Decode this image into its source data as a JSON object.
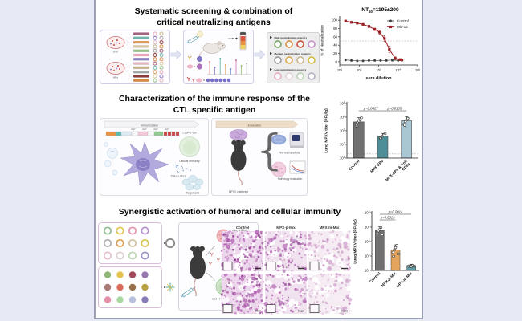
{
  "sections": {
    "s1": {
      "title_line1": "Systematic screening & combination of",
      "title_line2": "critical neutralizing antigens",
      "virus_top_label": "EVs",
      "virus_bottom_label": "MVs",
      "antigen_bars": [
        "#a8607f",
        "#6fb5ad",
        "#e09858",
        "#d9c9a2",
        "#97c487",
        "#e7a8ba",
        "#8a7cc2",
        "#e3b6c6",
        "#c4b488",
        "#a6a6a6",
        "#8c3a3a",
        "#d88a44"
      ],
      "screen_rows": [
        {
          "label": "High neutralization potency",
          "colors": [
            "#7ca86f",
            "#df964f",
            "#c65541",
            "#c794c7"
          ]
        },
        {
          "label": "Medium neutralization potency",
          "colors": [
            "#9b9b9b",
            "#ddab59",
            "#c9b795",
            "#cfc14f"
          ]
        },
        {
          "label": "Low neutralization potency",
          "colors": [
            "#e5b0c4",
            "#e4d4d4",
            "#bdd3b5",
            "#b5b5c7"
          ]
        }
      ]
    },
    "s2": {
      "title_line1": "Characterization of the immune response of the",
      "title_line2": "CTL specific antigen",
      "banner_left": "Immunization",
      "banner_right": "Evaluation",
      "linker": "AAY",
      "label_cd8": "CD8+ T cell",
      "label_cellular": "Cellular immunity",
      "label_cytokines": "TNF-α / IFN-γ",
      "label_target": "Target cells",
      "label_challenge": "MPXV challenge",
      "label_viral": "Viral load analysis",
      "label_pathology": "Pathology evaluation"
    },
    "s3": {
      "title": "Synergistic activation of humoral and cellular immunity",
      "ring_rows": [
        [
          "#8fbc8f",
          "#e2c350",
          "#e295ad",
          "#b493cf"
        ],
        [
          "#adadad",
          "#dd9f50",
          "#cfc0a0",
          "#d5c553"
        ],
        [
          "#e6bfd0",
          "#ddcfcf",
          "#bdd6b4",
          "#9a92c2"
        ]
      ],
      "dot_rows": [
        [
          "#8fb878",
          "#e5c34e",
          "#a04a5a",
          "#9878b0"
        ],
        [
          "#a87a76",
          "#d86a58",
          "#97704a",
          "#b7a040"
        ],
        [
          "#e591a8",
          "#a8d8a0",
          "#b8c0e0",
          "#887ab8"
        ]
      ],
      "label_plasma": "plasma B cell",
      "label_cd8": "CD8+ T cell",
      "label_target": "Target cell death",
      "chip1": "GzmB",
      "chip2": "IFN-γ",
      "histology": {
        "columns": [
          "Control",
          "MPX-p-Mix",
          "MPX-m-Mix"
        ],
        "base_colors": [
          "#edd7ec",
          "#f1e2ef",
          "#f6ecf3"
        ],
        "dot_colors": [
          [
            "#a855a8",
            "#8f3a8f",
            "#c77fc7"
          ],
          [
            "#b468b4",
            "#c98fc4",
            "#9a55a0"
          ],
          [
            "#cf9cca",
            "#dbb3d6",
            "#c08fbc"
          ]
        ],
        "densities": [
          1,
          0.8,
          0.55
        ]
      }
    }
  },
  "chart_data": [
    {
      "type": "line",
      "title_prefix": "NT",
      "title_sub": "50",
      "title_suffix": "=1195±200",
      "xlabel": "sera dilution",
      "ylabel": "% of Neutralization",
      "x_scale": "log",
      "x_ticks": [
        1,
        2,
        3,
        4,
        5
      ],
      "y_ticks": [
        0,
        20,
        40,
        60,
        80,
        100
      ],
      "ylim": [
        -8,
        110
      ],
      "dashed_y": 50,
      "legend_position": "top-right",
      "series": [
        {
          "name": "Control",
          "color": "#3f3f3f",
          "marker": "circle",
          "x_log": [
            1.3,
            1.6,
            1.9,
            2.2,
            2.5,
            2.8,
            3.1,
            3.4,
            3.7,
            4.0,
            4.2
          ],
          "y": [
            4,
            3,
            2,
            2,
            3,
            3,
            3,
            3,
            4,
            3,
            4
          ],
          "yerr": [
            1,
            1,
            1,
            1,
            1,
            1,
            1,
            1,
            3,
            1,
            1
          ]
        },
        {
          "name": "Mix-12",
          "color": "#9a1f24",
          "marker": "square",
          "x_log": [
            1.3,
            1.6,
            1.9,
            2.2,
            2.5,
            2.8,
            3.05,
            3.3,
            3.55,
            3.85,
            4.1,
            4.2
          ],
          "y": [
            98,
            95,
            93,
            90,
            85,
            78,
            71,
            56,
            30,
            8,
            5,
            4
          ],
          "yerr": [
            2,
            2,
            2,
            2,
            3,
            3,
            5,
            7,
            8,
            4,
            2,
            2
          ]
        }
      ]
    },
    {
      "type": "bar",
      "ylabel": "Lung MPXV titer (PFU/g)",
      "y_scale": "log",
      "y_ticks": [
        1,
        2,
        3,
        4,
        5
      ],
      "categories": [
        [
          "Control"
        ],
        [
          "MPX-EPs"
        ],
        [
          "MPX-EPs & Anti",
          "CD8a"
        ]
      ],
      "values": [
        4500,
        400,
        5500
      ],
      "upper": [
        9500,
        650,
        11000
      ],
      "bar_colors": [
        "#707070",
        "#4e8e96",
        "#a9c6d3"
      ],
      "detection_limit": 20,
      "points": [
        [
          3000,
          4200,
          5200,
          6500,
          9000,
          2200
        ],
        [
          300,
          360,
          420,
          500,
          620,
          280
        ],
        [
          3000,
          4800,
          6200,
          8000,
          10500,
          2600
        ]
      ],
      "significance": [
        {
          "from": 0,
          "to": 1,
          "label": "p=0.0427",
          "row": 1
        },
        {
          "from": 1,
          "to": 2,
          "label": "p=0.0105",
          "row": 1
        }
      ]
    },
    {
      "type": "bar",
      "ylabel": "Lung MPXV titer (PFU/g)",
      "y_scale": "log",
      "y_ticks": [
        1,
        2,
        3,
        4,
        5
      ],
      "categories": [
        [
          "Control"
        ],
        [
          "MPX-p-Mix"
        ],
        [
          "MPX-m-Mix"
        ]
      ],
      "values": [
        6000,
        260,
        22
      ],
      "upper": [
        11000,
        600,
        27
      ],
      "bar_colors": [
        "#707070",
        "#e5a45e",
        "#5e9aa4"
      ],
      "detection_limit": 20,
      "points": [
        [
          4000,
          5500,
          7000,
          9500,
          3000
        ],
        [
          180,
          260,
          380,
          550,
          140,
          95
        ],
        [
          20,
          21,
          19,
          22,
          20
        ]
      ],
      "significance": [
        {
          "from": 0,
          "to": 2,
          "label": "p=0.0014",
          "row": 2
        },
        {
          "from": 0,
          "to": 1,
          "label": "p=0.0019",
          "row": 1
        }
      ]
    }
  ]
}
